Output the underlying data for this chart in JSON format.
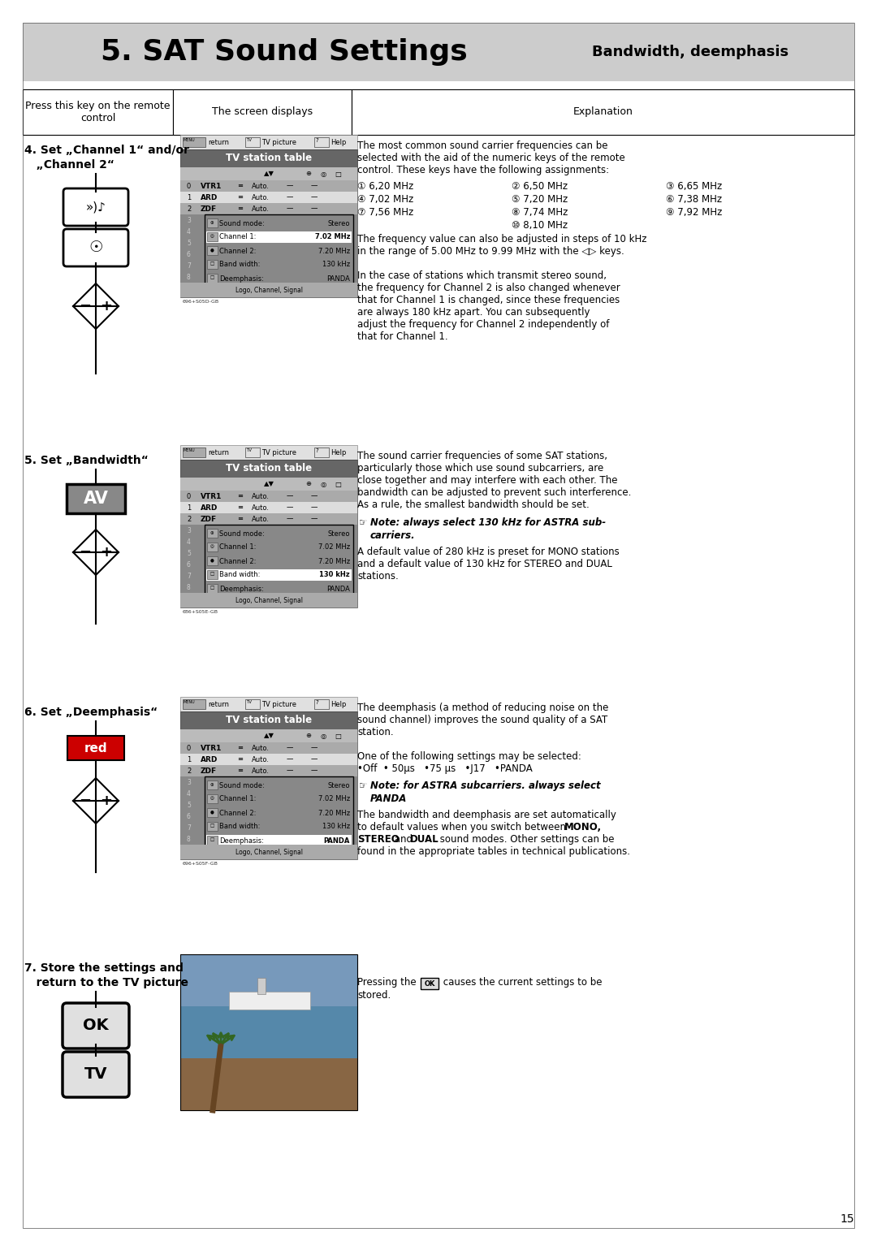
{
  "page_bg": "#ffffff",
  "header_bg": "#cccccc",
  "title_text": "5. SAT Sound Settings",
  "subtitle_text": "Bandwidth, deemphasis",
  "col1_header": "Press this key on the remote\ncontrol",
  "col2_header": "The screen displays",
  "col3_header": "Explanation",
  "section4_label": "4. Set „Channel 1“ and/or",
  "section4_label2": "   „Channel 2“",
  "section5_label": "5. Set „Bandwidth“",
  "section6_label": "6. Set „Deemphasis“",
  "section7_label": "7. Store the settings and",
  "section7_label2": "   return to the TV picture",
  "page_number": "15"
}
